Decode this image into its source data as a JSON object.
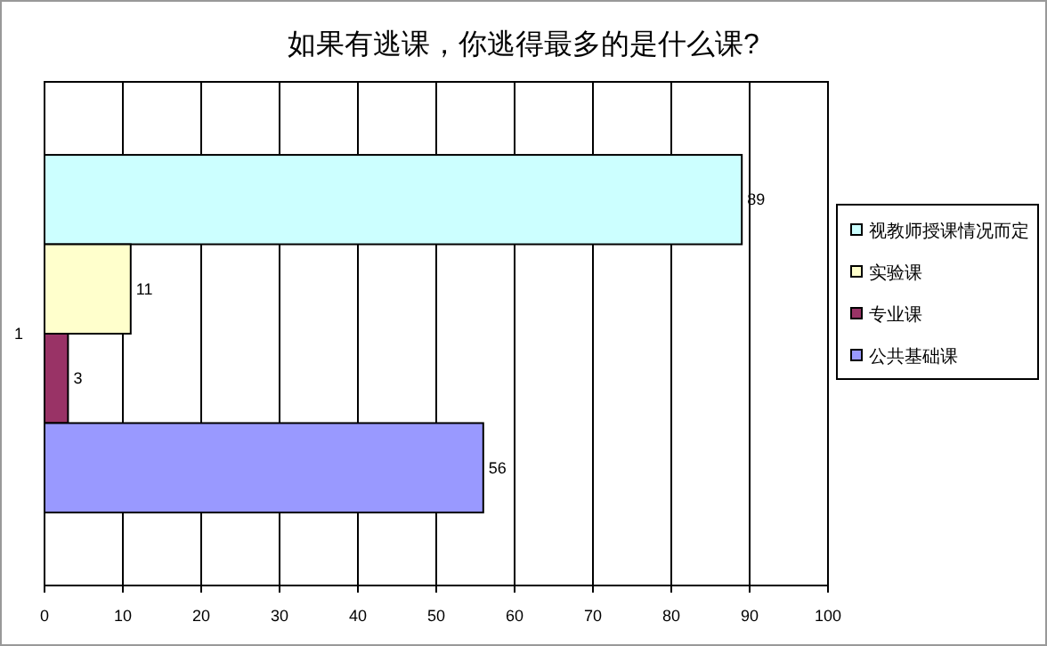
{
  "chart_data": {
    "type": "bar",
    "orientation": "horizontal",
    "title": "如果有逃课，你逃得最多的是什么课?",
    "categories": [
      "1"
    ],
    "series": [
      {
        "name": "视教师授课情况而定",
        "color": "#ccffff",
        "values": [
          89
        ]
      },
      {
        "name": "实验课",
        "color": "#ffffcc",
        "values": [
          11
        ]
      },
      {
        "name": "专业课",
        "color": "#993366",
        "values": [
          3
        ]
      },
      {
        "name": "公共基础课",
        "color": "#9999ff",
        "values": [
          56
        ]
      }
    ],
    "xlim": [
      0,
      100
    ],
    "xticks": [
      0,
      10,
      20,
      30,
      40,
      50,
      60,
      70,
      80,
      90,
      100
    ],
    "grid": "x",
    "legend": "right",
    "data_labels": true
  }
}
